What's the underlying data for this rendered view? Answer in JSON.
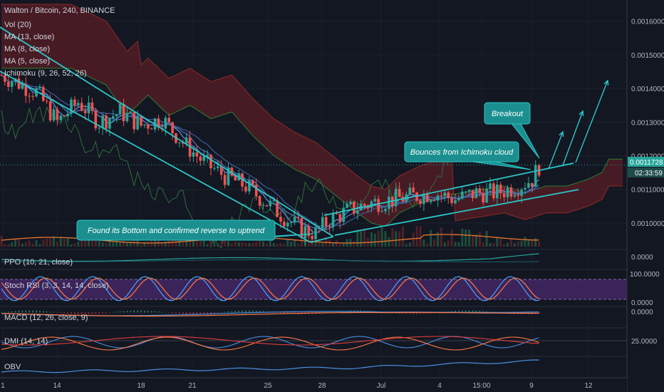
{
  "header": {
    "title": "Walton / Bitcoin, 240, BINANCE",
    "indicators": [
      "Vol (20)",
      "MA (13, close)",
      "MA (8, close)",
      "MA (5, close)",
      "Ichimoku (9, 26, 52, 26)"
    ]
  },
  "panes": {
    "ppo": "PPO (10, 21, close)",
    "stoch": "Stoch RSI (3, 3, 14, 14, close)",
    "macd": "MACD (12, 26, close, 9)",
    "dmi": "DMI (14, 14)",
    "obv": "OBV"
  },
  "price_axis": {
    "ticks": [
      "0.0016000",
      "0.0015000",
      "0.0014000",
      "0.0013000",
      "0.0012000",
      "0.0011000",
      "0.0010000"
    ],
    "current_price": "0.0011728",
    "countdown": "02:33:59"
  },
  "pane_axis": {
    "ppo": "0.0000",
    "stoch_top": "100.0000",
    "stoch_bottom": "0.0000",
    "macd": "0.0000",
    "dmi": "25.0000"
  },
  "time_axis": [
    "1",
    "14",
    "18",
    "21",
    "25",
    "28",
    "Jul",
    "4",
    "15:00",
    "9",
    "12"
  ],
  "annotations": {
    "bottom": "Found its Bottom and confirmed reverse to uptrend",
    "cloud": "Bounces from Ichimoku cloud",
    "breakout": "Breakout"
  },
  "colors": {
    "background": "#131722",
    "bull": "#26a69a",
    "bear": "#ef5350",
    "trendline": "#2bc6c6",
    "cloud_bear": "#5a1e25",
    "cloud_bull": "#1f4a2b",
    "stoch_band": "#4a2a6e",
    "note_bg": "#1b8f8f"
  },
  "chart_data": {
    "type": "candlestick",
    "symbol": "WTC/BTC",
    "timeframe": "240",
    "exchange": "BINANCE",
    "y_range": [
      0.00093,
      0.00165
    ],
    "last_price": 0.0011728,
    "price_path": [
      [
        0,
        0.00144
      ],
      [
        10,
        0.00139
      ],
      [
        16,
        0.0013
      ],
      [
        22,
        0.00136
      ],
      [
        28,
        0.0013
      ],
      [
        34,
        0.00133
      ],
      [
        40,
        0.00129
      ],
      [
        46,
        0.00131
      ],
      [
        52,
        0.00124
      ],
      [
        58,
        0.00118
      ],
      [
        64,
        0.00114
      ],
      [
        70,
        0.00111
      ],
      [
        76,
        0.00106
      ],
      [
        82,
        0.00101
      ],
      [
        86,
        0.00098
      ],
      [
        90,
        0.00097
      ],
      [
        94,
        0.00101
      ],
      [
        100,
        0.00104
      ],
      [
        106,
        0.00106
      ],
      [
        112,
        0.00107
      ],
      [
        118,
        0.00108
      ],
      [
        124,
        0.00109
      ],
      [
        130,
        0.00107
      ],
      [
        136,
        0.00109
      ],
      [
        142,
        0.00109
      ],
      [
        148,
        0.00111
      ],
      [
        152,
        0.00113
      ],
      [
        154,
        0.00117
      ]
    ]
  }
}
